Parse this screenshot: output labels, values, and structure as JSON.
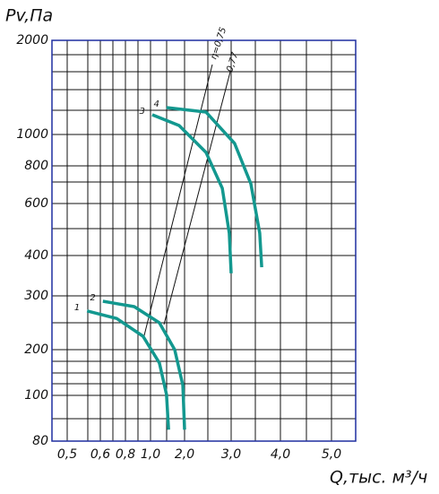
{
  "chart_data": {
    "type": "line",
    "y_label": "Pv,Па",
    "x_label": "Q,тыс. м³/ч",
    "xlim": [
      0.45,
      5.5
    ],
    "ylim": [
      80,
      2000
    ],
    "xticks": [
      {
        "value": 0.5,
        "label": "0,5"
      },
      {
        "value": 0.6,
        "label": "0,6"
      },
      {
        "value": 0.8,
        "label": "0,8"
      },
      {
        "value": 1.0,
        "label": "1,0"
      },
      {
        "value": 2.0,
        "label": "2,0"
      },
      {
        "value": 3.0,
        "label": "3,0"
      },
      {
        "value": 4.0,
        "label": "4,0"
      },
      {
        "value": 5.0,
        "label": "5,0"
      }
    ],
    "yticks": [
      2000,
      1000,
      800,
      600,
      400,
      300,
      200,
      100,
      80
    ],
    "grid": true,
    "annotations": [
      "η=0,75",
      "0,77"
    ],
    "series": [
      {
        "name": "1",
        "color": "#13988f",
        "x": [
          0.56,
          0.73,
          0.94,
          1.26,
          1.47,
          1.53
        ],
        "values": [
          272,
          258,
          225,
          171,
          102,
          85
        ]
      },
      {
        "name": "2",
        "color": "#13988f",
        "x": [
          0.62,
          0.87,
          1.26,
          1.71,
          1.95,
          2.0
        ],
        "values": [
          290,
          280,
          250,
          200,
          122,
          85
        ]
      },
      {
        "name": "3",
        "color": "#13988f",
        "x": [
          1.05,
          1.84,
          2.46,
          2.81,
          2.96,
          3.0
        ],
        "values": [
          1210,
          1095,
          886,
          681,
          486,
          356
        ]
      },
      {
        "name": "4",
        "color": "#13988f",
        "x": [
          1.47,
          2.46,
          3.07,
          3.4,
          3.58,
          3.62
        ],
        "values": [
          1286,
          1238,
          943,
          705,
          486,
          371
        ]
      }
    ]
  }
}
